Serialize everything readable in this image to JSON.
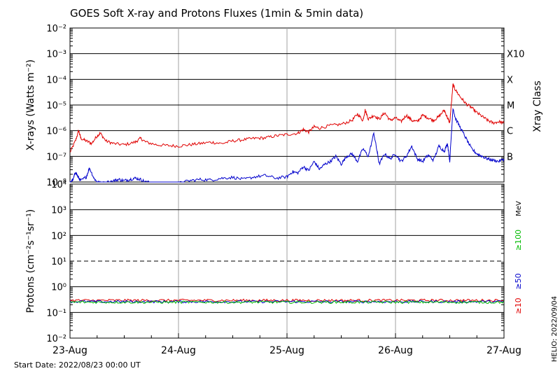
{
  "title": "GOES Soft X-ray and Protons Fluxes   (1min & 5min data)",
  "start_date_label": "Start Date: 2022/08/23 00:00 UT",
  "side_stamp": "HELIO: 2022/09/04",
  "xray_class_title": "Xray Class",
  "mev_label": "MeV",
  "colors": {
    "red": "#e00000",
    "blue": "#0000cc",
    "green": "#00bb00",
    "grid": "#000000",
    "vgrid": "#a0a0a0"
  },
  "chart_data": [
    {
      "type": "line",
      "panel": "xray",
      "ylabel": "X-rays (Watts m⁻²)",
      "scale": "log",
      "ylim_exp": [
        -8,
        -2
      ],
      "ytick_labels": [
        "10⁻⁸",
        "10⁻⁷",
        "10⁻⁶",
        "10⁻⁵",
        "10⁻⁴",
        "10⁻³",
        "10⁻²"
      ],
      "class_labels": [
        {
          "label": "B",
          "exp": -7
        },
        {
          "label": "C",
          "exp": -6
        },
        {
          "label": "M",
          "exp": -5
        },
        {
          "label": "X",
          "exp": -4
        },
        {
          "label": "X10",
          "exp": -3
        }
      ],
      "x_categories": [
        "23-Aug",
        "24-Aug",
        "25-Aug",
        "26-Aug",
        "27-Aug"
      ],
      "xlim_days": [
        0,
        4
      ],
      "series": [
        {
          "color": "red",
          "points": [
            [
              0.0,
              -6.85
            ],
            [
              0.05,
              -6.4
            ],
            [
              0.08,
              -6.0
            ],
            [
              0.1,
              -6.3
            ],
            [
              0.15,
              -6.4
            ],
            [
              0.2,
              -6.5
            ],
            [
              0.25,
              -6.2
            ],
            [
              0.28,
              -6.1
            ],
            [
              0.33,
              -6.4
            ],
            [
              0.4,
              -6.5
            ],
            [
              0.5,
              -6.55
            ],
            [
              0.6,
              -6.45
            ],
            [
              0.65,
              -6.3
            ],
            [
              0.7,
              -6.45
            ],
            [
              0.8,
              -6.55
            ],
            [
              0.9,
              -6.58
            ],
            [
              1.0,
              -6.6
            ],
            [
              1.1,
              -6.55
            ],
            [
              1.2,
              -6.5
            ],
            [
              1.3,
              -6.45
            ],
            [
              1.4,
              -6.5
            ],
            [
              1.5,
              -6.4
            ],
            [
              1.6,
              -6.35
            ],
            [
              1.7,
              -6.3
            ],
            [
              1.8,
              -6.28
            ],
            [
              1.9,
              -6.2
            ],
            [
              2.0,
              -6.15
            ],
            [
              2.1,
              -6.1
            ],
            [
              2.15,
              -5.95
            ],
            [
              2.2,
              -6.05
            ],
            [
              2.25,
              -5.85
            ],
            [
              2.3,
              -5.9
            ],
            [
              2.4,
              -5.8
            ],
            [
              2.5,
              -5.75
            ],
            [
              2.6,
              -5.6
            ],
            [
              2.65,
              -5.35
            ],
            [
              2.7,
              -5.6
            ],
            [
              2.72,
              -5.2
            ],
            [
              2.75,
              -5.55
            ],
            [
              2.8,
              -5.4
            ],
            [
              2.85,
              -5.55
            ],
            [
              2.9,
              -5.3
            ],
            [
              2.95,
              -5.6
            ],
            [
              3.0,
              -5.5
            ],
            [
              3.05,
              -5.65
            ],
            [
              3.1,
              -5.4
            ],
            [
              3.15,
              -5.6
            ],
            [
              3.2,
              -5.65
            ],
            [
              3.25,
              -5.4
            ],
            [
              3.3,
              -5.5
            ],
            [
              3.35,
              -5.6
            ],
            [
              3.4,
              -5.45
            ],
            [
              3.45,
              -5.2
            ],
            [
              3.48,
              -5.5
            ],
            [
              3.5,
              -5.7
            ],
            [
              3.53,
              -4.2
            ],
            [
              3.55,
              -4.4
            ],
            [
              3.6,
              -4.7
            ],
            [
              3.65,
              -4.95
            ],
            [
              3.7,
              -5.1
            ],
            [
              3.75,
              -5.3
            ],
            [
              3.8,
              -5.45
            ],
            [
              3.85,
              -5.6
            ],
            [
              3.9,
              -5.7
            ],
            [
              3.95,
              -5.65
            ],
            [
              4.0,
              -5.7
            ]
          ]
        },
        {
          "color": "blue",
          "points": [
            [
              0.0,
              -8.0
            ],
            [
              0.03,
              -7.9
            ],
            [
              0.05,
              -7.6
            ],
            [
              0.08,
              -7.85
            ],
            [
              0.1,
              -7.95
            ],
            [
              0.15,
              -7.8
            ],
            [
              0.18,
              -7.45
            ],
            [
              0.22,
              -7.85
            ],
            [
              0.25,
              -8.0
            ],
            [
              0.3,
              -8.05
            ],
            [
              0.4,
              -7.95
            ],
            [
              0.45,
              -7.9
            ],
            [
              0.5,
              -7.95
            ],
            [
              0.55,
              -7.9
            ],
            [
              0.6,
              -7.85
            ],
            [
              0.65,
              -7.9
            ],
            [
              0.7,
              -8.0
            ],
            [
              0.8,
              -8.05
            ],
            [
              0.9,
              -8.1
            ],
            [
              1.0,
              -8.05
            ],
            [
              1.1,
              -7.95
            ],
            [
              1.2,
              -7.9
            ],
            [
              1.3,
              -7.92
            ],
            [
              1.4,
              -7.85
            ],
            [
              1.5,
              -7.82
            ],
            [
              1.6,
              -7.9
            ],
            [
              1.7,
              -7.8
            ],
            [
              1.8,
              -7.75
            ],
            [
              1.9,
              -7.85
            ],
            [
              2.0,
              -7.8
            ],
            [
              2.05,
              -7.6
            ],
            [
              2.1,
              -7.65
            ],
            [
              2.15,
              -7.4
            ],
            [
              2.2,
              -7.55
            ],
            [
              2.25,
              -7.2
            ],
            [
              2.3,
              -7.5
            ],
            [
              2.35,
              -7.3
            ],
            [
              2.4,
              -7.2
            ],
            [
              2.45,
              -7.0
            ],
            [
              2.5,
              -7.3
            ],
            [
              2.55,
              -7.0
            ],
            [
              2.6,
              -6.9
            ],
            [
              2.65,
              -7.2
            ],
            [
              2.7,
              -6.7
            ],
            [
              2.75,
              -7.0
            ],
            [
              2.8,
              -6.1
            ],
            [
              2.83,
              -6.8
            ],
            [
              2.85,
              -7.3
            ],
            [
              2.9,
              -6.9
            ],
            [
              2.95,
              -7.1
            ],
            [
              3.0,
              -6.9
            ],
            [
              3.05,
              -7.2
            ],
            [
              3.1,
              -7.0
            ],
            [
              3.15,
              -6.6
            ],
            [
              3.2,
              -7.1
            ],
            [
              3.25,
              -7.2
            ],
            [
              3.3,
              -6.95
            ],
            [
              3.35,
              -7.15
            ],
            [
              3.4,
              -6.6
            ],
            [
              3.45,
              -6.8
            ],
            [
              3.48,
              -6.5
            ],
            [
              3.5,
              -7.2
            ],
            [
              3.53,
              -5.1
            ],
            [
              3.55,
              -5.5
            ],
            [
              3.6,
              -5.9
            ],
            [
              3.65,
              -6.3
            ],
            [
              3.7,
              -6.7
            ],
            [
              3.75,
              -6.9
            ],
            [
              3.8,
              -7.0
            ],
            [
              3.85,
              -7.1
            ],
            [
              3.9,
              -7.15
            ],
            [
              3.95,
              -7.2
            ],
            [
              4.0,
              -7.1
            ]
          ]
        }
      ]
    },
    {
      "type": "line",
      "panel": "protons",
      "ylabel": "Protons (cm⁻²s⁻¹sr⁻¹)",
      "scale": "log",
      "ylim_exp": [
        -2,
        4
      ],
      "ytick_labels": [
        "10⁻²",
        "10⁻¹",
        "10⁰",
        "10¹",
        "10²",
        "10³",
        "10⁴"
      ],
      "threshold_exp": 1,
      "x_categories": [
        "23-Aug",
        "24-Aug",
        "25-Aug",
        "26-Aug",
        "27-Aug"
      ],
      "xlim_days": [
        0,
        4
      ],
      "series": [
        {
          "name": "≥10",
          "color": "red",
          "level_exp": -0.53
        },
        {
          "name": "≥50",
          "color": "blue",
          "level_exp": -0.58
        },
        {
          "name": "≥100",
          "color": "green",
          "level_exp": -0.6
        }
      ]
    }
  ]
}
